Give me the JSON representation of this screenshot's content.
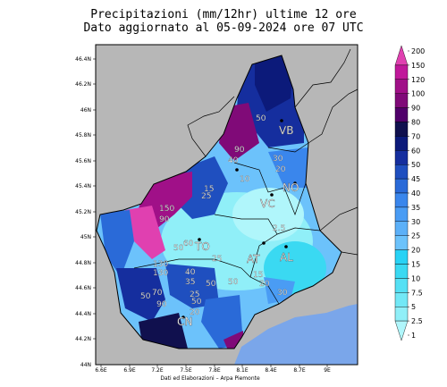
{
  "title_line1": "Precipitazioni (mm/12hr) ultime 12 ore",
  "title_line2": "Dato aggiornato al 05-09-2024 ore 07 UTC",
  "footer": "Dati ed Elaborazioni – Arpa Piemonte",
  "lat_ticks": [
    "46.4N",
    "46.2N",
    "46N",
    "45.8N",
    "45.6N",
    "45.4N",
    "45.2N",
    "45N",
    "44.8N",
    "44.6N",
    "44.4N",
    "44.2N",
    "44N"
  ],
  "lon_ticks": [
    "6.6E",
    "6.9E",
    "7.2E",
    "7.5E",
    "7.8E",
    "8.1E",
    "8.4E",
    "8.7E",
    "9E"
  ],
  "colorbar": {
    "levels": [
      "200",
      "150",
      "120",
      "100",
      "90",
      "80",
      "70",
      "60",
      "50",
      "45",
      "40",
      "35",
      "30",
      "25",
      "20",
      "15",
      "10",
      "7.5",
      "5",
      "2.5",
      "1"
    ],
    "colors": [
      "#e040b0",
      "#c0189a",
      "#a01088",
      "#800a78",
      "#50006a",
      "#10104e",
      "#0c1a7a",
      "#152e9e",
      "#1f4fbf",
      "#2a6ad8",
      "#3a86ec",
      "#4a9cf4",
      "#5cb0f8",
      "#6cc2fb",
      "#28d2f5",
      "#3ad9f2",
      "#55e0f4",
      "#72e8f6",
      "#90eff8",
      "#b0f6fb"
    ]
  },
  "provinces": [
    "VB",
    "NO",
    "VC",
    "TO",
    "AT",
    "AL",
    "CN"
  ],
  "value_labels": [
    "50",
    "90",
    "40",
    "30",
    "20",
    "10",
    "15",
    "25",
    "150",
    "90",
    "2.5",
    "60",
    "50",
    "130",
    "130",
    "40",
    "35",
    "25",
    "50",
    "50",
    "25",
    "15",
    "20",
    "30",
    "50",
    "70",
    "90",
    "50",
    "20"
  ]
}
